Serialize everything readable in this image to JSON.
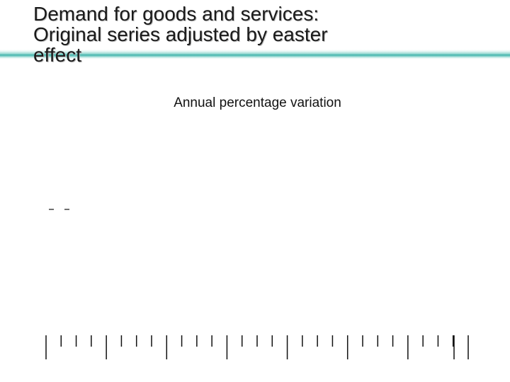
{
  "slide": {
    "title_lines": [
      "Demand for goods and services:",
      "Original series adjusted by easter",
      "effect"
    ]
  },
  "chart_data": {
    "type": "line",
    "title": "",
    "subtitle": "Annual percentage variation",
    "xlabel": "",
    "ylabel": "",
    "categories": [],
    "series": [],
    "ticks": {
      "periods": 7,
      "minor_per_period": 3,
      "major_tick": "long",
      "minor_tick": "short"
    },
    "grid": false,
    "legend": "none",
    "colors": {
      "axis": "#111111",
      "accent": "#3fb3aa"
    }
  }
}
